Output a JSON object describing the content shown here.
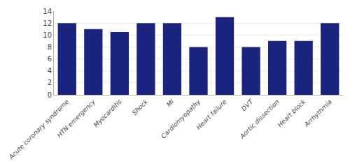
{
  "chart_data": {
    "type": "bar",
    "categories": [
      "Acute coronary syndrome",
      "HTN emergency",
      "Myocarditis",
      "Shock",
      "MI",
      "Cardiomyopathy",
      "Heart failure",
      "DVT",
      "Aortic dissection",
      "Heart block",
      "Arrhythmia"
    ],
    "values": [
      12,
      11,
      10.5,
      12,
      12,
      8,
      13,
      8,
      9,
      9,
      12
    ],
    "color": "#1a237e",
    "ylim": [
      0,
      14
    ],
    "yticks": [
      0,
      2,
      4,
      6,
      8,
      10,
      12,
      14
    ],
    "grid": true
  }
}
